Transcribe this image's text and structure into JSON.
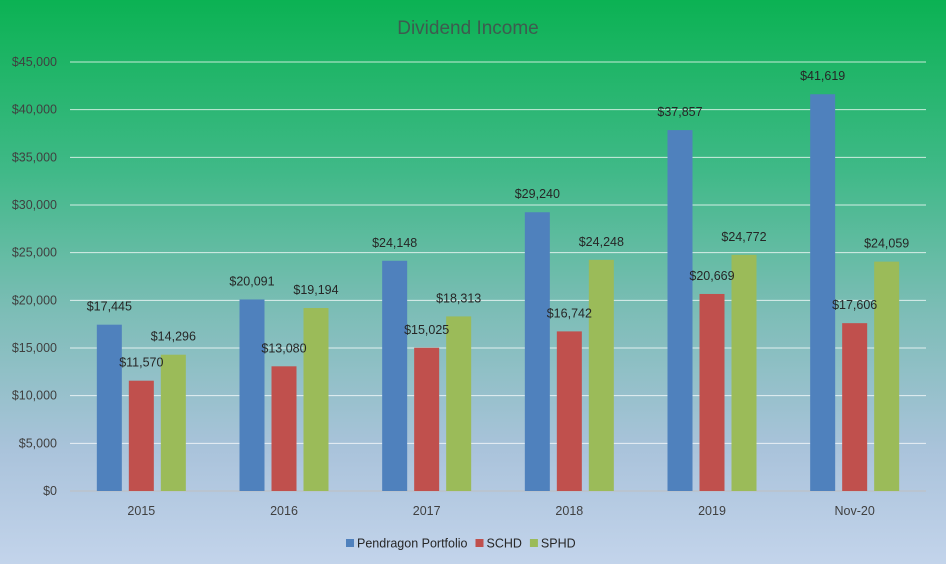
{
  "chart_data": {
    "type": "bar",
    "title": "Dividend Income",
    "categories": [
      "2015",
      "2016",
      "2017",
      "2018",
      "2019",
      "Nov-20"
    ],
    "series": [
      {
        "name": "Pendragon Portfolio",
        "color": "#4f81bd",
        "values": [
          17445,
          20091,
          24148,
          29240,
          37857,
          41619
        ],
        "labels": [
          "$17,445",
          "$20,091",
          "$24,148",
          "$29,240",
          "$37,857",
          "$41,619"
        ]
      },
      {
        "name": "SCHD",
        "color": "#c0504d",
        "values": [
          11570,
          13080,
          15025,
          16742,
          20669,
          17606
        ],
        "labels": [
          "$11,570",
          "$13,080",
          "$15,025",
          "$16,742",
          "$20,669",
          "$17,606"
        ]
      },
      {
        "name": "SPHD",
        "color": "#9bbb59",
        "values": [
          14296,
          19194,
          18313,
          24248,
          24772,
          24059
        ],
        "labels": [
          "$14,296",
          "$19,194",
          "$18,313",
          "$24,248",
          "$24,772",
          "$24,059"
        ]
      }
    ],
    "ylim": [
      0,
      45000
    ],
    "yticks": [
      0,
      5000,
      10000,
      15000,
      20000,
      25000,
      30000,
      35000,
      40000,
      45000
    ],
    "ytick_labels": [
      "$0",
      "$5,000",
      "$10,000",
      "$15,000",
      "$20,000",
      "$25,000",
      "$30,000",
      "$35,000",
      "$40,000",
      "$45,000"
    ],
    "xlabel": "",
    "ylabel": "",
    "grid": true,
    "legend_position": "bottom"
  }
}
